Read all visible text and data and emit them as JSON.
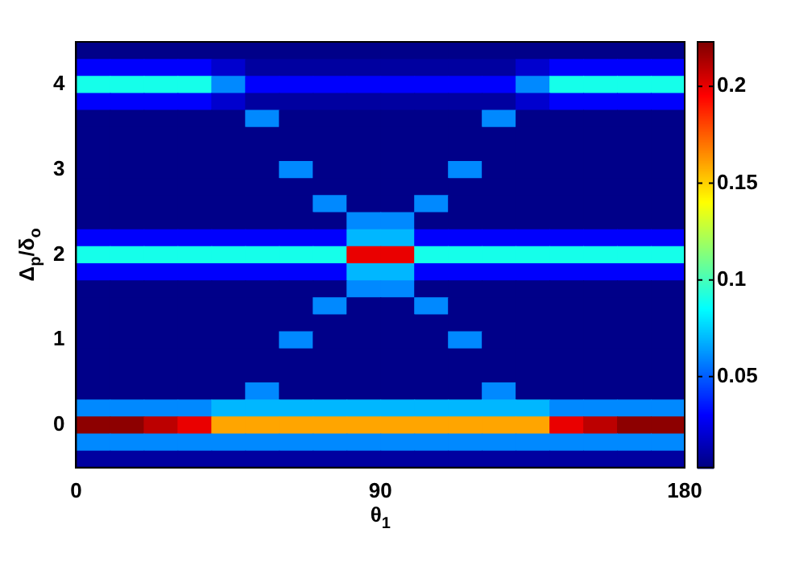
{
  "chart_data": {
    "type": "heatmap",
    "xlabel": "θ$_{1}$",
    "ylabel": "Δ$_{p}$/δ$_{o}$",
    "x": [
      5,
      15,
      25,
      35,
      45,
      55,
      65,
      75,
      85,
      95,
      105,
      115,
      125,
      135,
      145,
      155,
      165,
      175
    ],
    "y": [
      4.4,
      4.2,
      4.0,
      3.8,
      3.6,
      3.4,
      3.2,
      3.0,
      2.8,
      2.6,
      2.4,
      2.2,
      2.0,
      1.8,
      1.6,
      1.4,
      1.2,
      1.0,
      0.8,
      0.6,
      0.4,
      0.2,
      0.0,
      -0.2,
      -0.4
    ],
    "xlim": [
      0,
      180
    ],
    "xticks": [
      0,
      90,
      180
    ],
    "ylim": [
      -0.5,
      4.5
    ],
    "yticks": [
      0,
      1,
      2,
      3,
      4
    ],
    "clim": [
      0.003,
      0.223
    ],
    "cticks": [
      0.05,
      0.1,
      0.15,
      0.2
    ],
    "cells": [
      [
        0.005,
        0.005,
        0.005,
        0.005,
        0.005,
        0.005,
        0.005,
        0.005,
        0.005,
        0.005,
        0.005,
        0.005,
        0.005,
        0.005,
        0.005,
        0.005,
        0.005,
        0.005
      ],
      [
        0.03,
        0.03,
        0.03,
        0.03,
        0.02,
        0.01,
        0.01,
        0.01,
        0.01,
        0.01,
        0.01,
        0.01,
        0.01,
        0.02,
        0.03,
        0.03,
        0.03,
        0.03
      ],
      [
        0.09,
        0.09,
        0.09,
        0.09,
        0.06,
        0.03,
        0.03,
        0.03,
        0.03,
        0.03,
        0.03,
        0.03,
        0.03,
        0.06,
        0.09,
        0.09,
        0.09,
        0.09
      ],
      [
        0.03,
        0.03,
        0.03,
        0.03,
        0.02,
        0.01,
        0.01,
        0.01,
        0.01,
        0.01,
        0.01,
        0.01,
        0.01,
        0.02,
        0.03,
        0.03,
        0.03,
        0.03
      ],
      [
        0.005,
        0.005,
        0.005,
        0.005,
        0.005,
        0.06,
        0.005,
        0.005,
        0.005,
        0.005,
        0.005,
        0.005,
        0.06,
        0.005,
        0.005,
        0.005,
        0.005,
        0.005
      ],
      [
        0.005,
        0.005,
        0.005,
        0.005,
        0.005,
        0.005,
        0.005,
        0.005,
        0.005,
        0.005,
        0.005,
        0.005,
        0.005,
        0.005,
        0.005,
        0.005,
        0.005,
        0.005
      ],
      [
        0.005,
        0.005,
        0.005,
        0.005,
        0.005,
        0.005,
        0.005,
        0.005,
        0.005,
        0.005,
        0.005,
        0.005,
        0.005,
        0.005,
        0.005,
        0.005,
        0.005,
        0.005
      ],
      [
        0.005,
        0.005,
        0.005,
        0.005,
        0.005,
        0.005,
        0.06,
        0.005,
        0.005,
        0.005,
        0.005,
        0.06,
        0.005,
        0.005,
        0.005,
        0.005,
        0.005,
        0.005
      ],
      [
        0.005,
        0.005,
        0.005,
        0.005,
        0.005,
        0.005,
        0.005,
        0.005,
        0.005,
        0.005,
        0.005,
        0.005,
        0.005,
        0.005,
        0.005,
        0.005,
        0.005,
        0.005
      ],
      [
        0.005,
        0.005,
        0.005,
        0.005,
        0.005,
        0.005,
        0.005,
        0.06,
        0.005,
        0.005,
        0.06,
        0.005,
        0.005,
        0.005,
        0.005,
        0.005,
        0.005,
        0.005
      ],
      [
        0.005,
        0.005,
        0.005,
        0.005,
        0.005,
        0.005,
        0.005,
        0.005,
        0.06,
        0.06,
        0.005,
        0.005,
        0.005,
        0.005,
        0.005,
        0.005,
        0.005,
        0.005
      ],
      [
        0.03,
        0.03,
        0.03,
        0.03,
        0.03,
        0.03,
        0.03,
        0.03,
        0.07,
        0.07,
        0.03,
        0.03,
        0.03,
        0.03,
        0.03,
        0.03,
        0.03,
        0.03
      ],
      [
        0.09,
        0.09,
        0.09,
        0.09,
        0.09,
        0.09,
        0.09,
        0.09,
        0.2,
        0.2,
        0.09,
        0.09,
        0.09,
        0.09,
        0.09,
        0.09,
        0.09,
        0.09
      ],
      [
        0.03,
        0.03,
        0.03,
        0.03,
        0.03,
        0.03,
        0.03,
        0.03,
        0.07,
        0.07,
        0.03,
        0.03,
        0.03,
        0.03,
        0.03,
        0.03,
        0.03,
        0.03
      ],
      [
        0.005,
        0.005,
        0.005,
        0.005,
        0.005,
        0.005,
        0.005,
        0.005,
        0.06,
        0.06,
        0.005,
        0.005,
        0.005,
        0.005,
        0.005,
        0.005,
        0.005,
        0.005
      ],
      [
        0.005,
        0.005,
        0.005,
        0.005,
        0.005,
        0.005,
        0.005,
        0.06,
        0.005,
        0.005,
        0.06,
        0.005,
        0.005,
        0.005,
        0.005,
        0.005,
        0.005,
        0.005
      ],
      [
        0.005,
        0.005,
        0.005,
        0.005,
        0.005,
        0.005,
        0.005,
        0.005,
        0.005,
        0.005,
        0.005,
        0.005,
        0.005,
        0.005,
        0.005,
        0.005,
        0.005,
        0.005
      ],
      [
        0.005,
        0.005,
        0.005,
        0.005,
        0.005,
        0.005,
        0.06,
        0.005,
        0.005,
        0.005,
        0.005,
        0.06,
        0.005,
        0.005,
        0.005,
        0.005,
        0.005,
        0.005
      ],
      [
        0.005,
        0.005,
        0.005,
        0.005,
        0.005,
        0.005,
        0.005,
        0.005,
        0.005,
        0.005,
        0.005,
        0.005,
        0.005,
        0.005,
        0.005,
        0.005,
        0.005,
        0.005
      ],
      [
        0.005,
        0.005,
        0.005,
        0.005,
        0.005,
        0.005,
        0.005,
        0.005,
        0.005,
        0.005,
        0.005,
        0.005,
        0.005,
        0.005,
        0.005,
        0.005,
        0.005,
        0.005
      ],
      [
        0.005,
        0.005,
        0.005,
        0.005,
        0.005,
        0.06,
        0.005,
        0.005,
        0.005,
        0.005,
        0.005,
        0.005,
        0.06,
        0.005,
        0.005,
        0.005,
        0.005,
        0.005
      ],
      [
        0.06,
        0.06,
        0.06,
        0.06,
        0.07,
        0.07,
        0.07,
        0.07,
        0.07,
        0.07,
        0.07,
        0.07,
        0.07,
        0.07,
        0.06,
        0.06,
        0.06,
        0.06
      ],
      [
        0.22,
        0.22,
        0.21,
        0.2,
        0.16,
        0.16,
        0.16,
        0.16,
        0.16,
        0.16,
        0.16,
        0.16,
        0.16,
        0.16,
        0.2,
        0.21,
        0.22,
        0.22
      ],
      [
        0.06,
        0.06,
        0.06,
        0.06,
        0.06,
        0.06,
        0.06,
        0.06,
        0.06,
        0.06,
        0.06,
        0.06,
        0.06,
        0.06,
        0.06,
        0.06,
        0.06,
        0.06
      ],
      [
        0.01,
        0.01,
        0.01,
        0.01,
        0.01,
        0.01,
        0.01,
        0.01,
        0.01,
        0.01,
        0.01,
        0.01,
        0.01,
        0.01,
        0.01,
        0.01,
        0.01,
        0.01
      ]
    ]
  }
}
